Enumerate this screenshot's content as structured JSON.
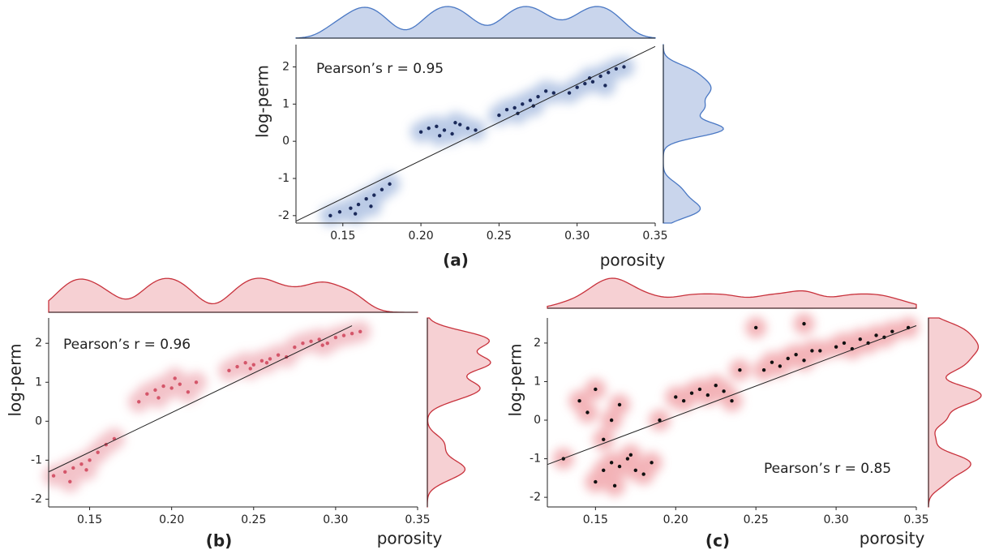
{
  "chart_data": [
    {
      "type": "scatter",
      "label": "(a)",
      "annotation": "Pearson’s r = 0.95",
      "x_label": "porosity",
      "y_label": "log-perm",
      "color": "#1b2a5a",
      "halo_color": "#a9bde0",
      "marginal_color": "#4a78c4",
      "marginal_fill": "#c9d5ec",
      "x": [
        0.142,
        0.148,
        0.155,
        0.16,
        0.165,
        0.17,
        0.175,
        0.18,
        0.158,
        0.168,
        0.2,
        0.205,
        0.21,
        0.215,
        0.22,
        0.225,
        0.23,
        0.212,
        0.222,
        0.235,
        0.25,
        0.255,
        0.26,
        0.265,
        0.27,
        0.275,
        0.28,
        0.262,
        0.272,
        0.285,
        0.295,
        0.3,
        0.305,
        0.31,
        0.315,
        0.32,
        0.325,
        0.33,
        0.308,
        0.318
      ],
      "y": [
        -2.0,
        -1.9,
        -1.8,
        -1.7,
        -1.55,
        -1.45,
        -1.3,
        -1.15,
        -1.95,
        -1.75,
        0.25,
        0.35,
        0.4,
        0.3,
        0.2,
        0.45,
        0.35,
        0.15,
        0.5,
        0.3,
        0.7,
        0.85,
        0.9,
        1.0,
        1.1,
        1.2,
        1.35,
        0.75,
        0.95,
        1.3,
        1.3,
        1.45,
        1.55,
        1.6,
        1.75,
        1.85,
        1.95,
        2.0,
        1.7,
        1.5
      ],
      "fit_line": {
        "x": [
          0.12,
          0.35
        ],
        "y": [
          -2.15,
          2.55
        ]
      },
      "xlim": [
        0.12,
        0.35
      ],
      "ylim": [
        -2.2,
        2.6
      ],
      "xticks": [
        0.15,
        {
          "value": 0.2,
          "label": "0.20"
        },
        0.25,
        {
          "value": 0.3,
          "label": "0.30"
        },
        0.35
      ],
      "yticks": [
        -2,
        -1,
        0,
        1,
        2
      ]
    },
    {
      "type": "scatter",
      "label": "(b)",
      "annotation": "Pearson’s r = 0.96",
      "x_label": "porosity",
      "y_label": "log-perm",
      "color": "#d4566a",
      "halo_color": "#f0b4bc",
      "marginal_color": "#c8323c",
      "marginal_fill": "#f6d0d3",
      "x": [
        0.128,
        0.135,
        0.14,
        0.145,
        0.15,
        0.155,
        0.16,
        0.165,
        0.138,
        0.148,
        0.18,
        0.185,
        0.19,
        0.195,
        0.2,
        0.205,
        0.21,
        0.215,
        0.192,
        0.202,
        0.235,
        0.24,
        0.245,
        0.25,
        0.255,
        0.26,
        0.265,
        0.27,
        0.248,
        0.258,
        0.275,
        0.28,
        0.285,
        0.29,
        0.295,
        0.3,
        0.305,
        0.31,
        0.292,
        0.315
      ],
      "y": [
        -1.4,
        -1.3,
        -1.2,
        -1.1,
        -1.0,
        -0.8,
        -0.6,
        -0.45,
        -1.55,
        -1.25,
        0.5,
        0.7,
        0.8,
        0.9,
        0.85,
        0.95,
        0.75,
        1.0,
        0.6,
        1.1,
        1.3,
        1.4,
        1.5,
        1.45,
        1.55,
        1.6,
        1.7,
        1.65,
        1.35,
        1.5,
        1.9,
        2.0,
        2.05,
        2.1,
        2.0,
        2.15,
        2.2,
        2.25,
        1.95,
        2.3
      ],
      "fit_line": {
        "x": [
          0.125,
          0.31
        ],
        "y": [
          -1.3,
          2.45
        ]
      },
      "xlim": [
        0.125,
        0.35
      ],
      "ylim": [
        -2.2,
        2.65
      ],
      "xticks": [
        0.15,
        {
          "value": 0.2,
          "label": "0.20"
        },
        0.25,
        {
          "value": 0.3,
          "label": "0.30"
        },
        0.35
      ],
      "yticks": [
        -2,
        -1,
        0,
        1,
        2
      ]
    },
    {
      "type": "scatter",
      "label": "(c)",
      "annotation": "Pearson’s r = 0.85",
      "x_label": "porosity",
      "y_label": "log-perm",
      "color": "#111111",
      "halo_color": "#f0a0a6",
      "marginal_color": "#c8323c",
      "marginal_fill": "#f6d0d3",
      "x": [
        0.15,
        0.155,
        0.16,
        0.165,
        0.17,
        0.175,
        0.18,
        0.185,
        0.162,
        0.172,
        0.155,
        0.16,
        0.165,
        0.15,
        0.145,
        0.2,
        0.205,
        0.21,
        0.215,
        0.22,
        0.225,
        0.23,
        0.235,
        0.255,
        0.26,
        0.265,
        0.27,
        0.275,
        0.28,
        0.285,
        0.29,
        0.3,
        0.305,
        0.31,
        0.315,
        0.32,
        0.325,
        0.33,
        0.335,
        0.345,
        0.13,
        0.14,
        0.19,
        0.24,
        0.25,
        0.28
      ],
      "y": [
        -1.6,
        -1.3,
        -1.1,
        -1.2,
        -1.0,
        -1.3,
        -1.4,
        -1.1,
        -1.7,
        -0.9,
        -0.5,
        0.0,
        0.4,
        0.8,
        0.2,
        0.6,
        0.5,
        0.7,
        0.8,
        0.65,
        0.9,
        0.75,
        0.5,
        1.3,
        1.5,
        1.4,
        1.6,
        1.7,
        1.55,
        1.8,
        1.8,
        1.9,
        2.0,
        1.85,
        2.1,
        2.0,
        2.2,
        2.15,
        2.3,
        2.4,
        -1.0,
        0.5,
        0.0,
        1.3,
        2.4,
        2.5
      ],
      "fit_line": {
        "x": [
          0.12,
          0.35
        ],
        "y": [
          -1.15,
          2.45
        ]
      },
      "xlim": [
        0.12,
        0.35
      ],
      "ylim": [
        -2.25,
        2.65
      ],
      "xticks": [
        0.15,
        {
          "value": 0.2,
          "label": "0.20"
        },
        0.25,
        {
          "value": 0.3,
          "label": "0.30"
        },
        0.35
      ],
      "yticks": [
        -2,
        -1,
        0,
        1,
        2
      ]
    }
  ]
}
